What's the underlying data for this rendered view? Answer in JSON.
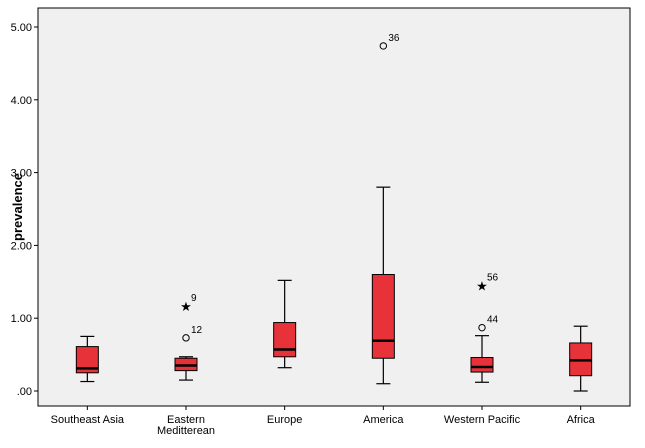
{
  "chart_data": {
    "type": "boxplot",
    "xlabel": "",
    "ylabel": "prevalence",
    "ylim": [
      0,
      5.2
    ],
    "yticks": [
      {
        "value": 0,
        "label": ".00"
      },
      {
        "value": 1,
        "label": "1.00"
      },
      {
        "value": 2,
        "label": "2.00"
      },
      {
        "value": 3,
        "label": "3.00"
      },
      {
        "value": 4,
        "label": "4.00"
      },
      {
        "value": 5,
        "label": "5.00"
      }
    ],
    "grid": false,
    "box_color": "#E8323A",
    "plot_background": "#F0F0F0",
    "categories": [
      {
        "name": "Southeast Asia",
        "label_lines": [
          "Southeast Asia"
        ],
        "min": 0.13,
        "q1": 0.25,
        "median": 0.31,
        "q3": 0.61,
        "max": 0.75,
        "outliers": []
      },
      {
        "name": "Eastern Meditterean",
        "label_lines": [
          "Eastern",
          "Meditterean"
        ],
        "min": 0.15,
        "q1": 0.28,
        "median": 0.35,
        "q3": 0.45,
        "max": 0.47,
        "outliers": [
          {
            "value": 1.17,
            "label": "9",
            "marker": "star"
          },
          {
            "value": 0.73,
            "label": "12",
            "marker": "circle"
          }
        ]
      },
      {
        "name": "Europe",
        "label_lines": [
          "Europe"
        ],
        "min": 0.32,
        "q1": 0.47,
        "median": 0.57,
        "q3": 0.94,
        "max": 1.52,
        "outliers": []
      },
      {
        "name": "America",
        "label_lines": [
          "America"
        ],
        "min": 0.1,
        "q1": 0.45,
        "median": 0.69,
        "q3": 1.6,
        "max": 2.8,
        "outliers": [
          {
            "value": 4.74,
            "label": "36",
            "marker": "circle"
          }
        ]
      },
      {
        "name": "Western Pacific",
        "label_lines": [
          "Western Pacific"
        ],
        "min": 0.12,
        "q1": 0.26,
        "median": 0.33,
        "q3": 0.46,
        "max": 0.76,
        "outliers": [
          {
            "value": 1.45,
            "label": "56",
            "marker": "star"
          },
          {
            "value": 0.87,
            "label": "44",
            "marker": "circle"
          }
        ]
      },
      {
        "name": "Africa",
        "label_lines": [
          "Africa"
        ],
        "min": 0.0,
        "q1": 0.21,
        "median": 0.42,
        "q3": 0.66,
        "max": 0.89,
        "outliers": []
      }
    ]
  }
}
